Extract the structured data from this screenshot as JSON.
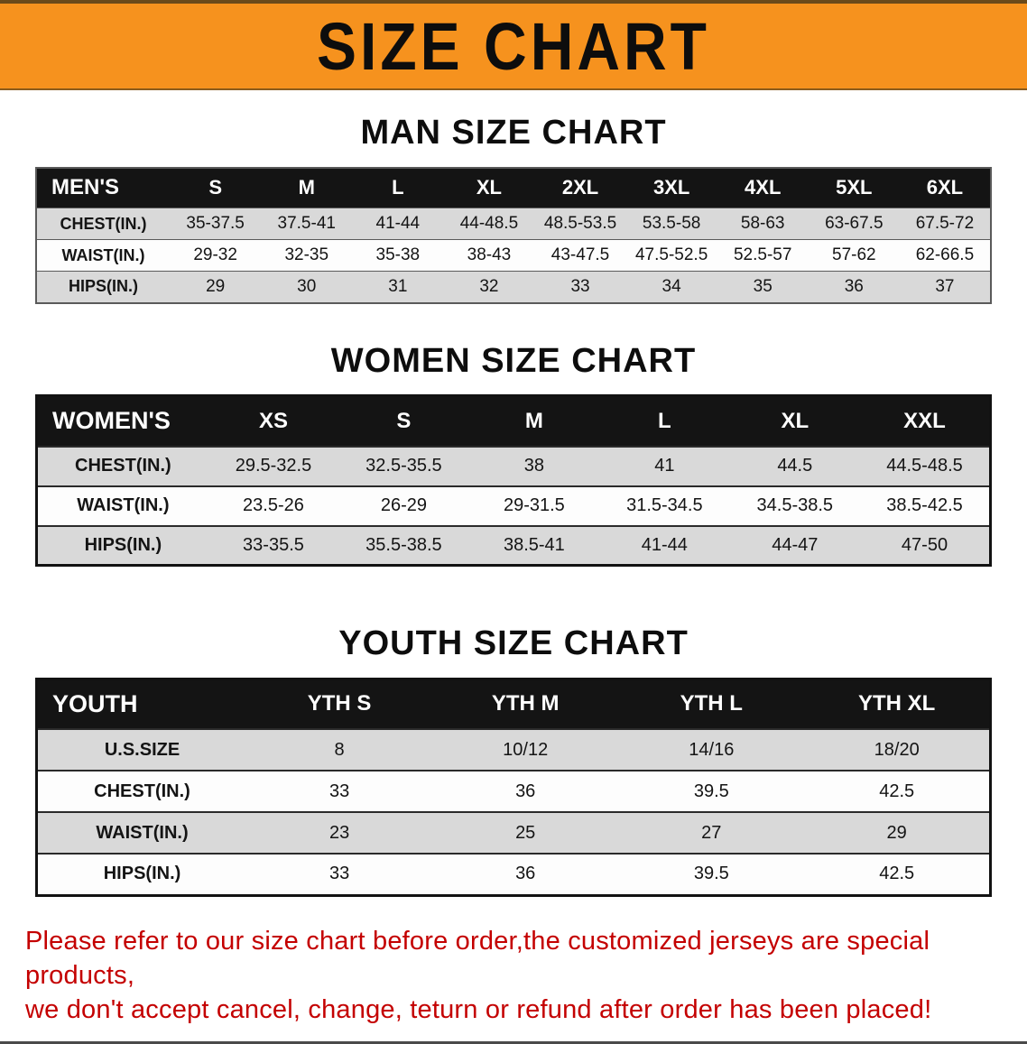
{
  "banner": {
    "title": "SIZE CHART",
    "bg_color": "#f6921e"
  },
  "men": {
    "heading": "MAN SIZE CHART",
    "table": {
      "header": [
        "MEN'S",
        "S",
        "M",
        "L",
        "XL",
        "2XL",
        "3XL",
        "4XL",
        "5XL",
        "6XL"
      ],
      "rows": [
        {
          "label": "CHEST(IN.)",
          "values": [
            "35-37.5",
            "37.5-41",
            "41-44",
            "44-48.5",
            "48.5-53.5",
            "53.5-58",
            "58-63",
            "63-67.5",
            "67.5-72"
          ]
        },
        {
          "label": "WAIST(IN.)",
          "values": [
            "29-32",
            "32-35",
            "35-38",
            "38-43",
            "43-47.5",
            "47.5-52.5",
            "52.5-57",
            "57-62",
            "62-66.5"
          ]
        },
        {
          "label": "HIPS(IN.)",
          "values": [
            "29",
            "30",
            "31",
            "32",
            "33",
            "34",
            "35",
            "36",
            "37"
          ]
        }
      ]
    }
  },
  "women": {
    "heading": "WOMEN SIZE CHART",
    "table": {
      "header": [
        "WOMEN'S",
        "XS",
        "S",
        "M",
        "L",
        "XL",
        "XXL"
      ],
      "rows": [
        {
          "label": "CHEST(IN.)",
          "values": [
            "29.5-32.5",
            "32.5-35.5",
            "38",
            "41",
            "44.5",
            "44.5-48.5"
          ]
        },
        {
          "label": "WAIST(IN.)",
          "values": [
            "23.5-26",
            "26-29",
            "29-31.5",
            "31.5-34.5",
            "34.5-38.5",
            "38.5-42.5"
          ]
        },
        {
          "label": "HIPS(IN.)",
          "values": [
            "33-35.5",
            "35.5-38.5",
            "38.5-41",
            "41-44",
            "44-47",
            "47-50"
          ]
        }
      ]
    }
  },
  "youth": {
    "heading": "YOUTH SIZE CHART",
    "table": {
      "header": [
        "YOUTH",
        "YTH S",
        "YTH M",
        "YTH L",
        "YTH XL"
      ],
      "rows": [
        {
          "label": "U.S.SIZE",
          "values": [
            "8",
            "10/12",
            "14/16",
            "18/20"
          ]
        },
        {
          "label": "CHEST(IN.)",
          "values": [
            "33",
            "36",
            "39.5",
            "42.5"
          ]
        },
        {
          "label": "WAIST(IN.)",
          "values": [
            "23",
            "25",
            "27",
            "29"
          ]
        },
        {
          "label": "HIPS(IN.)",
          "values": [
            "33",
            "36",
            "39.5",
            "42.5"
          ]
        }
      ]
    }
  },
  "disclaimer": {
    "line1": "Please refer to our size chart before order,the customized jerseys are special products,",
    "line2": "we don't accept cancel, change, teturn or refund after order has been placed!",
    "color": "#c40000"
  }
}
